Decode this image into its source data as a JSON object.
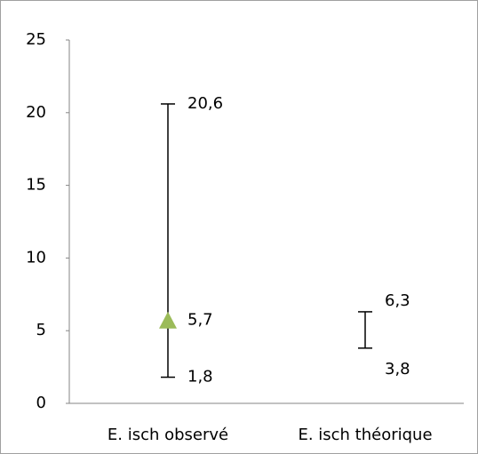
{
  "chart_data": {
    "type": "range",
    "categories": [
      "E. isch observé",
      "E. isch théorique"
    ],
    "high": {
      "values": [
        20.6,
        6.3
      ],
      "value_labels": [
        "20,6",
        "6,3"
      ]
    },
    "low": {
      "values": [
        1.8,
        3.8
      ],
      "value_labels": [
        "1,8",
        "3,8"
      ]
    },
    "point": {
      "values": [
        5.7,
        null
      ],
      "value_labels": [
        "5,7",
        null
      ],
      "color": "#9bbb59"
    },
    "line_color": "#000000",
    "ylim": [
      0,
      25
    ],
    "yticks": [
      0,
      5,
      10,
      15,
      20,
      25
    ]
  }
}
